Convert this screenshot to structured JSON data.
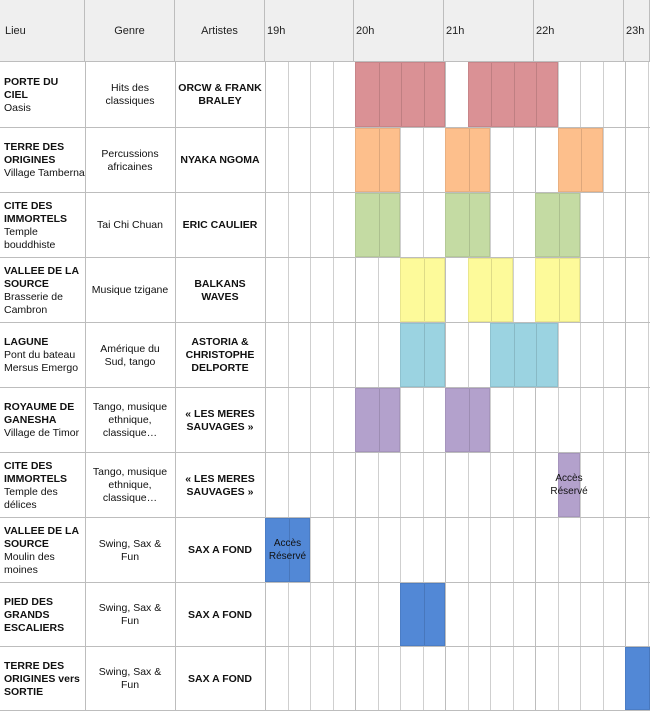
{
  "headers": {
    "lieu": "Lieu",
    "genre": "Genre",
    "artistes": "Artistes",
    "hours": [
      "19h",
      "20h",
      "21h",
      "22h",
      "23h"
    ]
  },
  "rows": [
    {
      "lieu_bold": "PORTE DU CIEL",
      "lieu_sub": "Oasis",
      "genre": "Hits des classiques",
      "artist": "ORCW & FRANK BRALEY",
      "color": "#da9195"
    },
    {
      "lieu_bold": "TERRE DES ORIGINES",
      "lieu_sub": "Village Tamberna",
      "genre": "Percussions africaines",
      "artist": "NYAKA NGOMA",
      "color": "#fdbf8c"
    },
    {
      "lieu_bold": "CITE DES IMMORTELS",
      "lieu_sub": "Temple bouddhiste",
      "genre": "Tai Chi Chuan",
      "artist": "ERIC CAULIER",
      "color": "#c4dba3"
    },
    {
      "lieu_bold": "VALLEE DE LA SOURCE",
      "lieu_sub": "Brasserie de Cambron",
      "genre": "Musique tzigane",
      "artist": "BALKANS WAVES",
      "color": "#fdfa9a"
    },
    {
      "lieu_bold": "LAGUNE",
      "lieu_sub": "Pont du bateau Mersus Emergo",
      "genre": "Amérique du Sud, tango",
      "artist": "ASTORIA & CHRISTOPHE DELPORTE",
      "color": "#9bd3e1"
    },
    {
      "lieu_bold": "ROYAUME DE GANESHA",
      "lieu_sub": "Village de Timor",
      "genre": "Tango, musique ethnique, classique…",
      "artist": "« LES MERES SAUVAGES »",
      "color": "#b3a1cc"
    },
    {
      "lieu_bold": "CITE DES IMMORTELS",
      "lieu_sub": "Temple des délices",
      "genre": "Tango, musique ethnique, classique…",
      "artist": "« LES MERES SAUVAGES »",
      "color": "#b3a1cc"
    },
    {
      "lieu_bold": "VALLEE DE LA SOURCE",
      "lieu_sub": "Moulin des moines",
      "genre": "Swing, Sax & Fun",
      "artist": "SAX A FOND",
      "color": "#5288d6"
    },
    {
      "lieu_bold": "PIED DES GRANDS ESCALIERS",
      "lieu_sub": "",
      "genre": "Swing, Sax & Fun",
      "artist": "SAX A FOND",
      "color": "#5288d6"
    },
    {
      "lieu_bold": "TERRE DES ORIGINES vers SORTIE",
      "lieu_sub": "",
      "genre": "Swing, Sax & Fun",
      "artist": "SAX A FOND",
      "color": "#5288d6"
    }
  ],
  "schedule": [
    {
      "row": 0,
      "slots": [
        [
          4,
          7
        ],
        [
          9,
          12
        ]
      ]
    },
    {
      "row": 1,
      "slots": [
        [
          4,
          5
        ],
        [
          8,
          9
        ],
        [
          13,
          14
        ]
      ]
    },
    {
      "row": 2,
      "slots": [
        [
          4,
          5
        ],
        [
          8,
          9
        ],
        [
          12,
          13
        ]
      ]
    },
    {
      "row": 3,
      "slots": [
        [
          6,
          7
        ],
        [
          9,
          10
        ],
        [
          12,
          13
        ]
      ]
    },
    {
      "row": 4,
      "slots": [
        [
          6,
          7
        ],
        [
          10,
          12
        ]
      ]
    },
    {
      "row": 5,
      "slots": [
        [
          4,
          5
        ],
        [
          8,
          9
        ]
      ]
    },
    {
      "row": 6,
      "slots": [
        [
          13,
          13
        ]
      ],
      "label": "Accès Réservé"
    },
    {
      "row": 7,
      "slots": [
        [
          0,
          1
        ]
      ],
      "label": "Accès Réservé"
    },
    {
      "row": 8,
      "slots": [
        [
          6,
          7
        ]
      ]
    },
    {
      "row": 9,
      "slots": [
        [
          16,
          17
        ]
      ]
    }
  ]
}
